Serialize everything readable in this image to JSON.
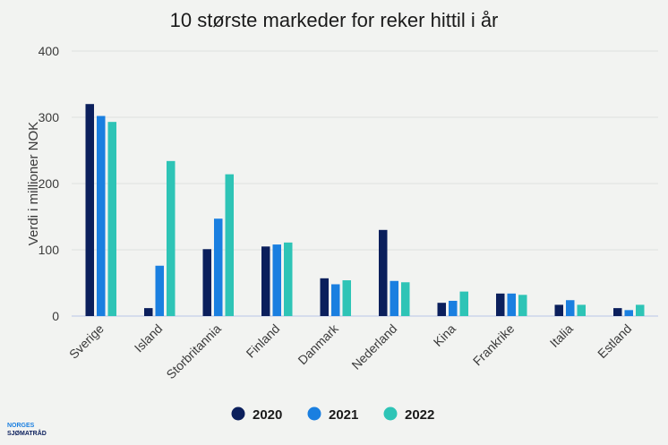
{
  "chart_data": {
    "type": "bar",
    "title": "10 største markeder for reker hittil i år",
    "ylabel": "Verdi i millioner NOK",
    "xlabel": "",
    "ylim": [
      0,
      400
    ],
    "yticks": [
      0,
      100,
      200,
      300,
      400
    ],
    "grid": true,
    "legend_position": "bottom",
    "categories": [
      "Sverige",
      "Island",
      "Storbritannia",
      "Finland",
      "Danmark",
      "Nederland",
      "Kina",
      "Frankrike",
      "Italia",
      "Estland"
    ],
    "series": [
      {
        "name": "2020",
        "color": "#0b1f5c",
        "values": [
          320,
          12,
          101,
          105,
          57,
          130,
          20,
          34,
          17,
          12
        ]
      },
      {
        "name": "2021",
        "color": "#1a7fe0",
        "values": [
          302,
          76,
          147,
          108,
          48,
          53,
          23,
          34,
          24,
          9
        ]
      },
      {
        "name": "2022",
        "color": "#2ec4b6",
        "values": [
          293,
          234,
          214,
          111,
          54,
          51,
          37,
          32,
          17,
          17
        ]
      }
    ]
  },
  "logo": {
    "line1": "NORGES",
    "line2": "SJØMATRÅD"
  }
}
